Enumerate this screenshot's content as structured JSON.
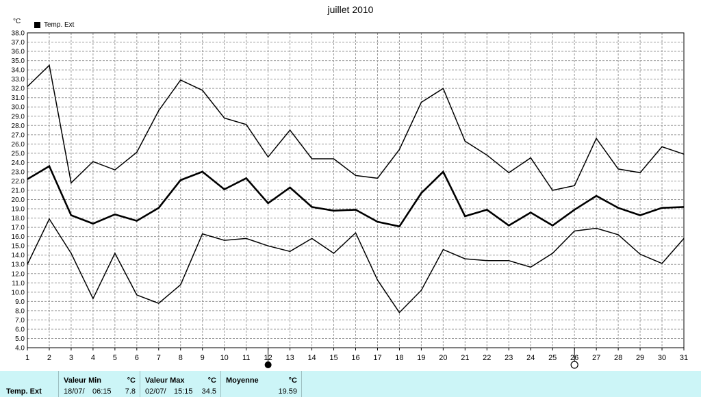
{
  "chart_data": {
    "type": "line",
    "title": "juillet 2010",
    "ylabel": "°C",
    "ylim": [
      4.0,
      38.0
    ],
    "grid": true,
    "legend_position": "top-left",
    "categories": [
      "1",
      "2",
      "3",
      "4",
      "5",
      "6",
      "7",
      "8",
      "9",
      "10",
      "11",
      "12",
      "13",
      "14",
      "15",
      "16",
      "17",
      "18",
      "19",
      "20",
      "21",
      "22",
      "23",
      "24",
      "25",
      "26",
      "27",
      "28",
      "29",
      "30",
      "31"
    ],
    "y_ticks": [
      "4.0",
      "5.0",
      "6.0",
      "7.0",
      "8.0",
      "9.0",
      "10.0",
      "11.0",
      "12.0",
      "13.0",
      "14.0",
      "15.0",
      "16.0",
      "17.0",
      "18.0",
      "19.0",
      "20.0",
      "21.0",
      "22.0",
      "23.0",
      "24.0",
      "25.0",
      "26.0",
      "27.0",
      "28.0",
      "29.0",
      "30.0",
      "31.0",
      "32.0",
      "33.0",
      "34.0",
      "35.0",
      "36.0",
      "37.0",
      "38.0"
    ],
    "legend": [
      "Temp. Ext"
    ],
    "series": [
      {
        "name": "Temp. Ext",
        "role": "max",
        "values": [
          32.2,
          34.5,
          21.8,
          24.1,
          23.2,
          25.1,
          29.6,
          32.9,
          31.8,
          28.8,
          28.1,
          24.6,
          27.5,
          24.4,
          24.4,
          22.6,
          22.3,
          25.4,
          30.5,
          32.0,
          26.3,
          24.8,
          22.9,
          24.5,
          21.0,
          21.5,
          26.6,
          23.3,
          22.9,
          25.7,
          24.9
        ]
      },
      {
        "name": "Temp. Ext",
        "role": "mean",
        "values": [
          22.2,
          23.6,
          18.3,
          17.4,
          18.4,
          17.7,
          19.1,
          22.1,
          23.0,
          21.1,
          22.3,
          19.6,
          21.3,
          19.2,
          18.8,
          18.9,
          17.6,
          17.1,
          20.7,
          23.0,
          18.2,
          18.9,
          17.2,
          18.6,
          17.2,
          18.9,
          20.4,
          19.1,
          18.3,
          19.1,
          19.2
        ]
      },
      {
        "name": "Temp. Ext",
        "role": "min",
        "values": [
          13.0,
          17.9,
          14.2,
          9.3,
          14.2,
          9.7,
          8.8,
          10.8,
          16.3,
          15.6,
          15.8,
          15.0,
          14.4,
          15.8,
          14.2,
          16.4,
          11.3,
          7.8,
          10.2,
          14.6,
          13.6,
          13.4,
          13.4,
          12.7,
          14.2,
          16.6,
          16.9,
          16.2,
          14.1,
          13.1,
          15.8
        ]
      }
    ],
    "markers": [
      {
        "day": "12",
        "icon": "new-moon-icon"
      },
      {
        "day": "26",
        "icon": "full-moon-icon"
      }
    ]
  },
  "stats": {
    "row_label": "Temp. Ext",
    "min_label": "Valeur Min",
    "min_unit": "°C",
    "min_date": "18/07/",
    "min_time": "06:15",
    "min_value": "7.8",
    "max_label": "Valeur Max",
    "max_unit": "°C",
    "max_date": "02/07/",
    "max_time": "15:15",
    "max_value": "34.5",
    "mean_label": "Moyenne",
    "mean_unit": "°C",
    "mean_value": "19.59"
  }
}
